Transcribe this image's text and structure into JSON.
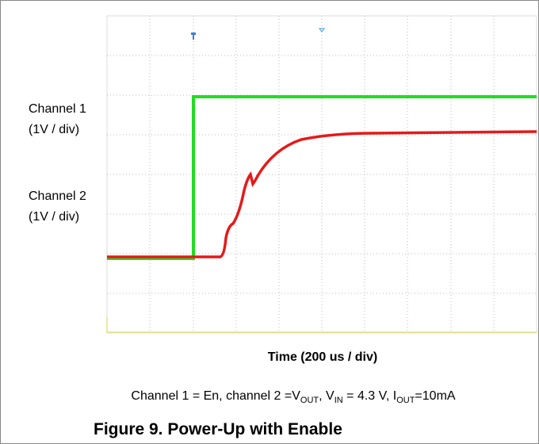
{
  "labels": {
    "channel1": "Channel 1",
    "channel1_scale": "(1V / div)",
    "channel2": "Channel 2",
    "channel2_scale": "(1V / div)",
    "time": "Time (200 us / div)"
  },
  "caption": {
    "parts": [
      "Channel 1 = En, channel 2 =V",
      "OUT",
      ", V",
      "IN",
      " = 4.3 V, I",
      "OUT",
      "=10mA"
    ]
  },
  "figure_title": "Figure 9. Power-Up with Enable"
}
